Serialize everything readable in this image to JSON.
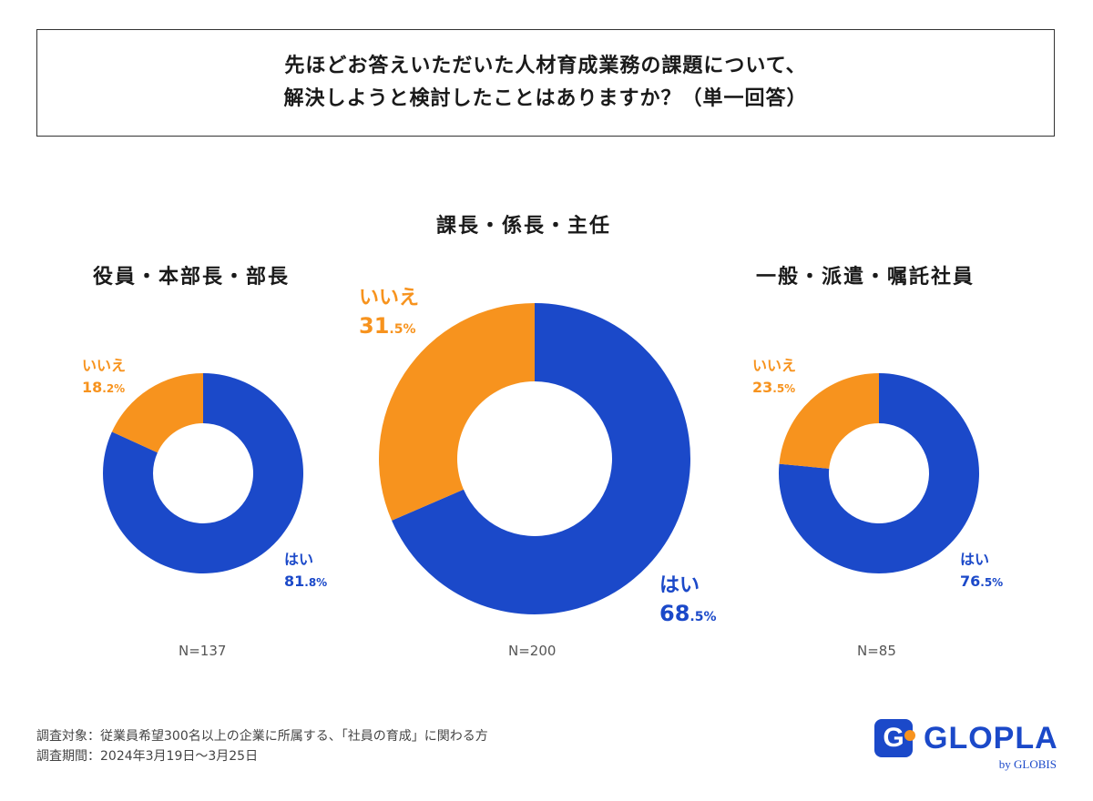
{
  "title": {
    "line1": "先ほどお答えいただいた人材育成業務の課題について、",
    "line2": "解決しようと検討したことはありますか？（単一回答）"
  },
  "colors": {
    "yes": "#1b49c9",
    "no": "#f7931e"
  },
  "chart_data": [
    {
      "type": "pie",
      "title": "役員・本部長・部長",
      "n_label": "N=137",
      "slices": [
        {
          "label": "はい",
          "value": 81.8,
          "big": "81",
          "small": ".8%"
        },
        {
          "label": "いいえ",
          "value": 18.2,
          "big": "18",
          "small": ".2%"
        }
      ]
    },
    {
      "type": "pie",
      "title": "課長・係長・主任",
      "n_label": "N=200",
      "slices": [
        {
          "label": "はい",
          "value": 68.5,
          "big": "68",
          "small": ".5%"
        },
        {
          "label": "いいえ",
          "value": 31.5,
          "big": "31",
          "small": ".5%"
        }
      ]
    },
    {
      "type": "pie",
      "title": "一般・派遣・嘱託社員",
      "n_label": "N=85",
      "slices": [
        {
          "label": "はい",
          "value": 76.5,
          "big": "76",
          "small": ".5%"
        },
        {
          "label": "いいえ",
          "value": 23.5,
          "big": "23",
          "small": ".5%"
        }
      ]
    }
  ],
  "footer": {
    "target": "調査対象：従業員希望300名以上の企業に所属する、「社員の育成」に関わる方",
    "period": "調査期間：2024年3月19日〜3月25日"
  },
  "logo": {
    "mark": "G",
    "name": "GLOPLA",
    "by": "by GLOBIS"
  }
}
